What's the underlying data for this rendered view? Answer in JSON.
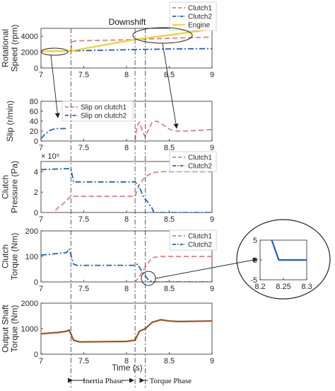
{
  "figure": {
    "title": "Downshift",
    "xlabel": "Time (s)",
    "phase_inertia": "Inertia Phase",
    "phase_torque": "Torque Phase",
    "phase_lines_x": [
      7.35,
      8.1,
      8.22
    ]
  },
  "colors": {
    "clutch1": "#e07f7f",
    "clutch2": "#1f5fc8",
    "engine": "#f0d02a",
    "output": "#a0521c",
    "axis": "#262626",
    "grid": "#d9d9d9"
  },
  "chart_data": [
    {
      "id": "speed",
      "type": "line",
      "ylabel": [
        "Rotational",
        "Speed (rpm)"
      ],
      "xlim": [
        7,
        9
      ],
      "ylim": [
        0,
        5000
      ],
      "xticks": [
        7,
        7.5,
        8,
        8.5,
        9
      ],
      "xticklabels": [
        "7",
        "7.5",
        "8",
        "8.5",
        "9"
      ],
      "yticks": [
        0,
        2000,
        4000
      ],
      "yticklabels": [
        "0",
        "2000",
        "4000"
      ],
      "legend": "top-right",
      "series": [
        {
          "name": "Clutch1",
          "style": "dash",
          "color": "#e07f7f",
          "x": [
            7,
            7.3,
            7.35,
            7.36,
            7.4,
            7.5,
            8.0,
            8.1,
            8.22,
            8.5,
            9
          ],
          "y": [
            2100,
            2120,
            2150,
            3300,
            3400,
            3450,
            3550,
            3600,
            3650,
            3750,
            3900
          ]
        },
        {
          "name": "Clutch2",
          "style": "dashdot",
          "color": "#1f5fc8",
          "x": [
            7,
            7.35,
            7.5,
            8.0,
            8.5,
            9
          ],
          "y": [
            2100,
            2150,
            2200,
            2300,
            2400,
            2450
          ]
        },
        {
          "name": "Engine",
          "style": "solid",
          "color": "#f0d02a",
          "x": [
            7,
            7.35,
            8.1,
            8.5,
            9
          ],
          "y": [
            2100,
            2150,
            3600,
            4150,
            4900
          ]
        }
      ]
    },
    {
      "id": "slip",
      "type": "line",
      "ylabel": [
        "Slip (r/min)"
      ],
      "xlim": [
        7,
        9
      ],
      "ylim": [
        0,
        80
      ],
      "xticks": [
        7,
        7.5,
        8,
        8.5,
        9
      ],
      "xticklabels": [
        "7",
        "7.5",
        "8",
        "8.5",
        "9"
      ],
      "yticks": [
        0,
        20,
        40,
        60,
        80
      ],
      "yticklabels": [
        "0",
        "20",
        "40",
        "60",
        "80"
      ],
      "legend": "top-left",
      "series": [
        {
          "name": "Slip on clutch1",
          "style": "dash",
          "color": "#e07f7f",
          "x": [
            8.1,
            8.12,
            8.15,
            8.18,
            8.22,
            8.25,
            8.3,
            8.35,
            8.4,
            8.45,
            8.5,
            8.55,
            8.6,
            8.7,
            8.8,
            8.9,
            9
          ],
          "y": [
            0,
            28,
            38,
            22,
            8,
            20,
            38,
            40,
            36,
            30,
            24,
            21,
            20,
            20,
            21,
            22,
            23
          ]
        },
        {
          "name": "Slip on clutch2",
          "style": "dashdot",
          "color": "#1f5fc8",
          "x": [
            7,
            7.05,
            7.1,
            7.15,
            7.2,
            7.25,
            7.3
          ],
          "y": [
            5,
            14,
            21,
            24,
            25,
            25,
            25
          ]
        }
      ]
    },
    {
      "id": "pressure",
      "type": "line",
      "ylabel": [
        "Clutch",
        "Pressure (Pa)"
      ],
      "exponent": "× 10⁵",
      "xlim": [
        7,
        9
      ],
      "ylim": [
        0,
        500000
      ],
      "xticks": [
        7,
        7.5,
        8,
        8.5,
        9
      ],
      "xticklabels": [
        "7",
        "7.5",
        "8",
        "8.5",
        "9"
      ],
      "yticks": [
        0,
        200000,
        400000
      ],
      "yticklabels": [
        "0",
        "2",
        "4"
      ],
      "legend": "top-right",
      "series": [
        {
          "name": "Clutch1",
          "style": "dash",
          "color": "#e07f7f",
          "x": [
            7,
            7.1,
            7.15,
            7.2,
            7.25,
            7.3,
            7.35,
            8.1,
            8.15,
            8.22,
            8.3,
            8.4,
            9
          ],
          "y": [
            0,
            0,
            0,
            50000,
            80000,
            120000,
            160000,
            160000,
            280000,
            350000,
            390000,
            400000,
            400000
          ]
        },
        {
          "name": "Clutch2",
          "style": "dashdot",
          "color": "#1f5fc8",
          "x": [
            7,
            7.3,
            7.35,
            7.38,
            7.42,
            8.1,
            8.15,
            8.2,
            8.25,
            8.3,
            8.32,
            9
          ],
          "y": [
            420000,
            430000,
            430000,
            300000,
            300000,
            300000,
            250000,
            150000,
            100000,
            40000,
            0,
            0
          ]
        }
      ]
    },
    {
      "id": "torque",
      "type": "line",
      "ylabel": [
        "Clutch",
        "Torque (Nm)"
      ],
      "xlim": [
        7,
        9
      ],
      "ylim": [
        0,
        200
      ],
      "xticks": [
        7,
        7.5,
        8,
        8.5,
        9
      ],
      "xticklabels": [
        "7",
        "7.5",
        "8",
        "8.5",
        "9"
      ],
      "yticks": [
        0,
        100,
        200
      ],
      "yticklabels": [
        "0",
        "100",
        "200"
      ],
      "legend": "top-right",
      "series": [
        {
          "name": "Clutch1",
          "style": "dash",
          "color": "#e07f7f",
          "x": [
            7,
            8.1,
            8.15,
            8.22,
            8.3,
            8.4,
            8.5,
            9
          ],
          "y": [
            0,
            0,
            20,
            60,
            95,
            100,
            100,
            100
          ]
        },
        {
          "name": "Clutch2",
          "style": "dashdot",
          "color": "#1f5fc8",
          "x": [
            7,
            7.3,
            7.33,
            7.38,
            7.42,
            8.1,
            8.13,
            8.18,
            8.25,
            8.3,
            9
          ],
          "y": [
            105,
            115,
            130,
            70,
            65,
            65,
            70,
            40,
            10,
            0,
            0
          ]
        }
      ]
    },
    {
      "id": "output",
      "type": "line",
      "ylabel": [
        "Output Shaft",
        "Torque (Nm)"
      ],
      "xlim": [
        7,
        9
      ],
      "ylim": [
        0,
        2000
      ],
      "xticks": [
        7,
        7.5,
        8,
        8.5,
        9
      ],
      "xticklabels": [
        "7",
        "7.5",
        "8",
        "8.5",
        "9"
      ],
      "yticks": [
        0,
        1000,
        2000
      ],
      "yticklabels": [
        "0",
        "1000",
        "2000"
      ],
      "series": [
        {
          "style": "solid",
          "color": "#a0521c",
          "x": [
            7,
            7.2,
            7.3,
            7.33,
            7.38,
            7.45,
            8.0,
            8.1,
            8.15,
            8.22,
            8.3,
            8.4,
            8.5,
            8.6,
            9
          ],
          "y": [
            800,
            850,
            900,
            950,
            550,
            480,
            500,
            550,
            900,
            1000,
            1250,
            1350,
            1300,
            1280,
            1300
          ]
        }
      ]
    },
    {
      "id": "inset",
      "type": "line",
      "xlim": [
        8.2,
        8.3
      ],
      "ylim": [
        -5,
        5
      ],
      "xticks": [
        8.2,
        8.25,
        8.3
      ],
      "xticklabels": [
        "8.2",
        "8.25",
        "8.3"
      ],
      "yticks": [
        -5,
        0,
        5
      ],
      "yticklabels": [
        "-5",
        "0",
        "5"
      ],
      "series": [
        {
          "style": "solid",
          "color": "#1f5fc8",
          "x": [
            8.225,
            8.24,
            8.3
          ],
          "y": [
            5,
            0,
            0
          ]
        }
      ]
    }
  ]
}
